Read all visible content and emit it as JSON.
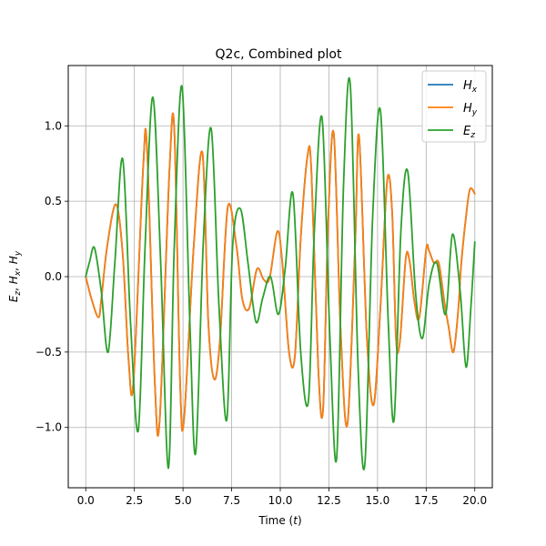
{
  "chart_data": {
    "type": "line",
    "title": "Q2c, Combined plot",
    "xlabel": "Time (t)",
    "ylabel": "E_z, H_x, H_y",
    "xlim": [
      -0.9,
      20.9
    ],
    "ylim": [
      -1.4,
      1.4
    ],
    "xticks": [
      0,
      2.5,
      5,
      7.5,
      10,
      12.5,
      15,
      17.5,
      20
    ],
    "xtick_labels": [
      "0.0",
      "2.5",
      "5.0",
      "7.5",
      "10.0",
      "12.5",
      "15.0",
      "17.5",
      "20.0"
    ],
    "yticks": [
      -1.0,
      -0.5,
      0.0,
      0.5,
      1.0
    ],
    "ytick_labels": [
      "−1.0",
      "−0.5",
      "0.0",
      "0.5",
      "1.0"
    ],
    "grid": true,
    "legend_position": "top-right",
    "series": [
      {
        "name": "H_x",
        "color": "#1f77b4",
        "x": [
          0,
          0.3,
          0.65,
          0.8,
          1.1,
          1.55,
          1.9,
          2.2,
          2.45,
          2.95,
          3.15,
          3.55,
          3.8,
          4.3,
          4.55,
          4.85,
          5.05,
          5.55,
          6.0,
          6.3,
          6.6,
          6.9,
          7.3,
          7.75,
          8.05,
          8.4,
          8.8,
          9.15,
          9.45,
          9.85,
          10.1,
          10.45,
          10.75,
          11.05,
          11.4,
          11.6,
          11.95,
          12.2,
          12.45,
          12.75,
          13.1,
          13.45,
          13.85,
          14.05,
          14.45,
          14.8,
          15.15,
          15.5,
          15.75,
          15.95,
          16.15,
          16.45,
          16.65,
          16.9,
          17.15,
          17.5,
          17.65,
          17.9,
          18.15,
          18.45,
          18.65,
          18.9,
          19.15,
          19.3,
          19.55,
          19.75,
          20.0
        ],
        "y": [
          0,
          -0.15,
          -0.27,
          -0.15,
          0.2,
          0.48,
          0.15,
          -0.55,
          -0.7,
          0.72,
          0.85,
          -0.7,
          -0.95,
          0.7,
          0.98,
          -0.7,
          -0.95,
          0.2,
          0.82,
          -0.3,
          -0.68,
          -0.42,
          0.46,
          0.2,
          -0.15,
          -0.21,
          0.05,
          -0.02,
          -0.01,
          0.3,
          0.1,
          -0.5,
          -0.53,
          0.25,
          0.8,
          0.7,
          -0.6,
          -0.88,
          0.32,
          0.95,
          -0.35,
          -0.98,
          0.22,
          0.93,
          -0.4,
          -0.85,
          -0.2,
          0.64,
          0.43,
          -0.41,
          -0.43,
          0.12,
          0.1,
          -0.17,
          -0.27,
          0.18,
          0.17,
          0.09,
          0.09,
          -0.18,
          -0.33,
          -0.5,
          -0.22,
          0.08,
          0.4,
          0.58,
          0.55
        ]
      },
      {
        "name": "H_y",
        "color": "#ff7f0e",
        "x": [
          0,
          0.3,
          0.65,
          0.8,
          1.1,
          1.55,
          1.9,
          2.2,
          2.45,
          2.95,
          3.15,
          3.55,
          3.8,
          4.3,
          4.55,
          4.85,
          5.05,
          5.55,
          6.0,
          6.3,
          6.6,
          6.9,
          7.3,
          7.75,
          8.05,
          8.4,
          8.8,
          9.15,
          9.45,
          9.85,
          10.1,
          10.45,
          10.75,
          11.05,
          11.4,
          11.6,
          11.95,
          12.2,
          12.45,
          12.75,
          13.1,
          13.45,
          13.85,
          14.05,
          14.45,
          14.8,
          15.15,
          15.5,
          15.75,
          15.95,
          16.15,
          16.45,
          16.65,
          16.9,
          17.15,
          17.5,
          17.65,
          17.9,
          18.15,
          18.45,
          18.65,
          18.9,
          19.15,
          19.3,
          19.55,
          19.75,
          20.0
        ],
        "y": [
          0,
          -0.15,
          -0.27,
          -0.15,
          0.2,
          0.48,
          0.15,
          -0.55,
          -0.7,
          0.72,
          0.85,
          -0.7,
          -0.95,
          0.7,
          0.98,
          -0.7,
          -0.95,
          0.2,
          0.82,
          -0.3,
          -0.68,
          -0.42,
          0.46,
          0.2,
          -0.15,
          -0.21,
          0.05,
          -0.02,
          -0.01,
          0.3,
          0.1,
          -0.5,
          -0.53,
          0.25,
          0.8,
          0.7,
          -0.6,
          -0.88,
          0.32,
          0.95,
          -0.35,
          -0.98,
          0.22,
          0.93,
          -0.4,
          -0.85,
          -0.2,
          0.64,
          0.43,
          -0.41,
          -0.43,
          0.12,
          0.1,
          -0.17,
          -0.27,
          0.18,
          0.17,
          0.09,
          0.09,
          -0.18,
          -0.33,
          -0.5,
          -0.22,
          0.08,
          0.4,
          0.58,
          0.55
        ]
      },
      {
        "name": "E_z",
        "color": "#2ca02c",
        "x": [
          0,
          0.2,
          0.45,
          0.8,
          1.15,
          1.5,
          1.9,
          2.3,
          2.7,
          3.05,
          3.45,
          3.85,
          4.25,
          4.55,
          4.95,
          5.35,
          5.65,
          6.05,
          6.45,
          6.85,
          7.25,
          7.55,
          7.95,
          8.35,
          8.75,
          9.1,
          9.5,
          9.9,
          10.25,
          10.65,
          11.05,
          11.45,
          11.75,
          12.15,
          12.55,
          12.9,
          13.25,
          13.6,
          14.0,
          14.35,
          14.75,
          15.15,
          15.55,
          15.85,
          16.2,
          16.55,
          16.95,
          17.3,
          17.65,
          18.05,
          18.5,
          18.85,
          19.25,
          19.55,
          19.8,
          20.0
        ],
        "y": [
          0,
          0.1,
          0.19,
          -0.1,
          -0.5,
          0.1,
          0.78,
          -0.3,
          -1.02,
          0.2,
          1.19,
          0.1,
          -1.27,
          0.2,
          1.26,
          -0.3,
          -1.17,
          0.25,
          0.98,
          -0.2,
          -0.95,
          0.2,
          0.45,
          0.08,
          -0.3,
          -0.14,
          0.0,
          -0.25,
          0.05,
          0.55,
          -0.5,
          -0.82,
          0.3,
          1.05,
          -0.4,
          -1.2,
          0.6,
          1.27,
          -0.6,
          -1.24,
          0.4,
          1.1,
          -0.3,
          -0.95,
          0.3,
          0.7,
          -0.1,
          -0.41,
          -0.05,
          0.09,
          -0.25,
          0.28,
          -0.1,
          -0.6,
          -0.2,
          0.23
        ]
      }
    ]
  }
}
